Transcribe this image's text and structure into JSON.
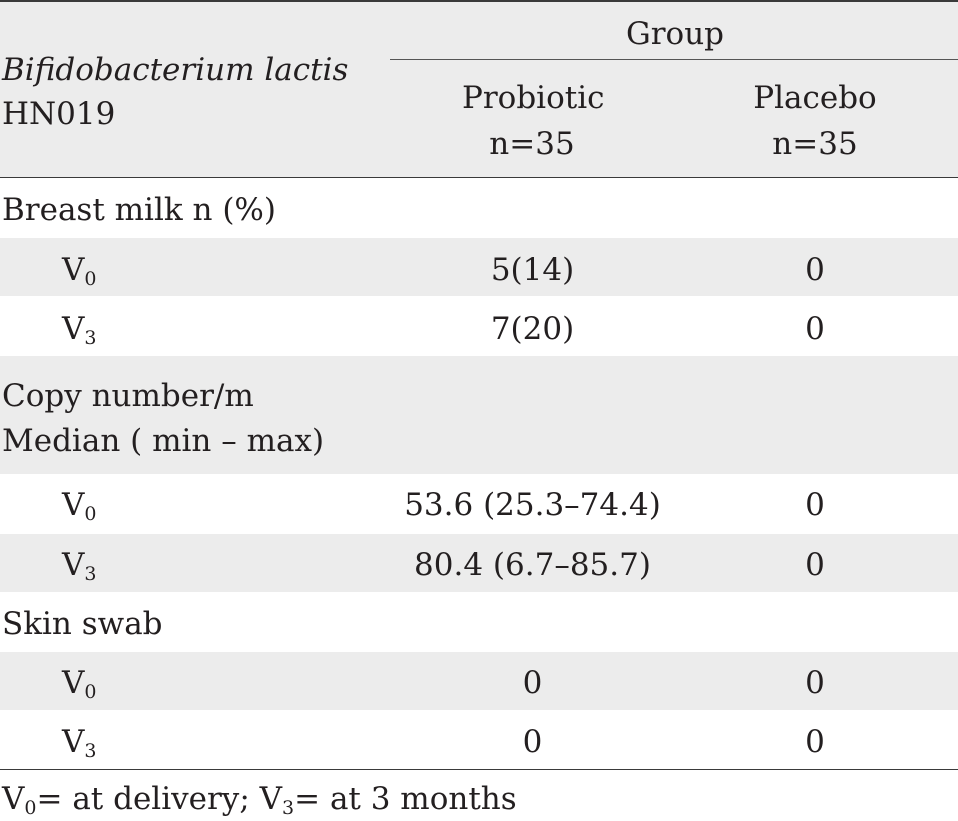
{
  "header": {
    "row_label_line1": "Bifidobacterium lactis",
    "row_label_line2": "HN019",
    "group_label": "Group",
    "col_probiotic_name": "Probiotic",
    "col_probiotic_n": "n=35",
    "col_placebo_name": "Placebo",
    "col_placebo_n": "n=35"
  },
  "sections": [
    {
      "title": "Breast milk n (%)",
      "rows": [
        {
          "label": "V",
          "sub": "0",
          "probiotic": "5(14)",
          "placebo": "0"
        },
        {
          "label": "V",
          "sub": "3",
          "probiotic": "7(20)",
          "placebo": "0"
        }
      ]
    },
    {
      "title_line1": "Copy number/m",
      "title_line2": "Median ( min – max)",
      "rows": [
        {
          "label": "V",
          "sub": "0",
          "probiotic": "53.6 (25.3–74.4)",
          "placebo": "0"
        },
        {
          "label": "V",
          "sub": "3",
          "probiotic": "80.4 (6.7–85.7)",
          "placebo": "0"
        }
      ]
    },
    {
      "title": "Skin swab",
      "rows": [
        {
          "label": "V",
          "sub": "0",
          "probiotic": "0",
          "placebo": "0"
        },
        {
          "label": "V",
          "sub": "3",
          "probiotic": "0",
          "placebo": "0"
        }
      ]
    }
  ],
  "footnote": {
    "v": "V",
    "sub0": "0",
    "part1": "= at delivery; ",
    "sub3": "3",
    "part2": "= at 3 months"
  }
}
